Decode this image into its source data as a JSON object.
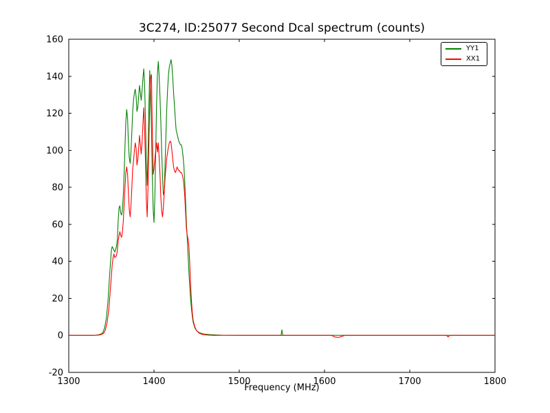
{
  "chart_data": {
    "type": "line",
    "title": "3C274, ID:25077 Second Dcal spectrum (counts)",
    "xlabel": "Frequency (MHz)",
    "ylabel": "",
    "xlim": [
      1300,
      1800
    ],
    "ylim": [
      -20,
      160
    ],
    "x_ticks": [
      1300,
      1400,
      1500,
      1600,
      1700,
      1800
    ],
    "y_ticks": [
      -20,
      0,
      20,
      40,
      60,
      80,
      100,
      120,
      140,
      160
    ],
    "grid": false,
    "legend_position": "upper right",
    "series": [
      {
        "name": "YY1",
        "color": "#008000",
        "points": [
          [
            1300,
            0
          ],
          [
            1315,
            0
          ],
          [
            1330,
            0
          ],
          [
            1335,
            0.3
          ],
          [
            1338,
            0.8
          ],
          [
            1340,
            1.5
          ],
          [
            1342,
            4
          ],
          [
            1344,
            9
          ],
          [
            1346,
            18
          ],
          [
            1348,
            33
          ],
          [
            1350,
            46
          ],
          [
            1351,
            48
          ],
          [
            1352,
            47
          ],
          [
            1354,
            45
          ],
          [
            1356,
            48
          ],
          [
            1357,
            52
          ],
          [
            1358,
            62
          ],
          [
            1359,
            69
          ],
          [
            1360,
            70
          ],
          [
            1361,
            66
          ],
          [
            1362,
            65
          ],
          [
            1363,
            68
          ],
          [
            1364,
            76
          ],
          [
            1365,
            88
          ],
          [
            1366,
            102
          ],
          [
            1367,
            116
          ],
          [
            1368,
            122
          ],
          [
            1369,
            117
          ],
          [
            1370,
            104
          ],
          [
            1371,
            96
          ],
          [
            1372,
            93
          ],
          [
            1373,
            99
          ],
          [
            1374,
            110
          ],
          [
            1375,
            121
          ],
          [
            1376,
            127
          ],
          [
            1377,
            131
          ],
          [
            1378,
            133
          ],
          [
            1379,
            129
          ],
          [
            1380,
            121
          ],
          [
            1381,
            123
          ],
          [
            1382,
            129
          ],
          [
            1383,
            135
          ],
          [
            1384,
            131
          ],
          [
            1385,
            127
          ],
          [
            1386,
            132
          ],
          [
            1387,
            139
          ],
          [
            1388,
            144
          ],
          [
            1389,
            135
          ],
          [
            1390,
            116
          ],
          [
            1391,
            94
          ],
          [
            1392,
            81
          ],
          [
            1393,
            98
          ],
          [
            1394,
            124
          ],
          [
            1395,
            143
          ],
          [
            1396,
            132
          ],
          [
            1397,
            112
          ],
          [
            1398,
            86
          ],
          [
            1399,
            68
          ],
          [
            1400,
            61
          ],
          [
            1401,
            74
          ],
          [
            1402,
            99
          ],
          [
            1403,
            124
          ],
          [
            1404,
            141
          ],
          [
            1405,
            148
          ],
          [
            1406,
            141
          ],
          [
            1407,
            129
          ],
          [
            1408,
            116
          ],
          [
            1409,
            99
          ],
          [
            1410,
            86
          ],
          [
            1411,
            76
          ],
          [
            1412,
            78
          ],
          [
            1413,
            92
          ],
          [
            1414,
            109
          ],
          [
            1415,
            123
          ],
          [
            1416,
            133
          ],
          [
            1417,
            141
          ],
          [
            1418,
            145
          ],
          [
            1419,
            147
          ],
          [
            1420,
            149
          ],
          [
            1421,
            146
          ],
          [
            1422,
            139
          ],
          [
            1423,
            131
          ],
          [
            1424,
            124
          ],
          [
            1425,
            117
          ],
          [
            1426,
            111
          ],
          [
            1427,
            109
          ],
          [
            1428,
            107
          ],
          [
            1429,
            105
          ],
          [
            1430,
            104
          ],
          [
            1431,
            103
          ],
          [
            1432,
            103
          ],
          [
            1433,
            101
          ],
          [
            1434,
            97
          ],
          [
            1435,
            92
          ],
          [
            1436,
            84
          ],
          [
            1437,
            73
          ],
          [
            1438,
            61
          ],
          [
            1439,
            52
          ],
          [
            1440,
            43
          ],
          [
            1441,
            34
          ],
          [
            1442,
            26
          ],
          [
            1443,
            19
          ],
          [
            1444,
            14
          ],
          [
            1445,
            10
          ],
          [
            1446,
            7
          ],
          [
            1448,
            4
          ],
          [
            1450,
            2.5
          ],
          [
            1453,
            1.5
          ],
          [
            1456,
            1
          ],
          [
            1460,
            0.6
          ],
          [
            1465,
            0.4
          ],
          [
            1470,
            0.3
          ],
          [
            1480,
            0.1
          ],
          [
            1500,
            0
          ],
          [
            1549,
            0
          ],
          [
            1550,
            3
          ],
          [
            1551,
            0
          ],
          [
            1600,
            0
          ],
          [
            1650,
            0
          ],
          [
            1700,
            0
          ],
          [
            1750,
            0
          ],
          [
            1800,
            0
          ]
        ]
      },
      {
        "name": "XX1",
        "color": "#ff0000",
        "points": [
          [
            1300,
            0
          ],
          [
            1315,
            0
          ],
          [
            1330,
            0
          ],
          [
            1336,
            0.2
          ],
          [
            1339,
            0.6
          ],
          [
            1341,
            1.2
          ],
          [
            1343,
            3
          ],
          [
            1345,
            7
          ],
          [
            1347,
            14
          ],
          [
            1349,
            26
          ],
          [
            1350,
            32
          ],
          [
            1351,
            38
          ],
          [
            1352,
            42
          ],
          [
            1353,
            44
          ],
          [
            1354,
            42
          ],
          [
            1356,
            43
          ],
          [
            1357,
            46
          ],
          [
            1358,
            51
          ],
          [
            1359,
            54
          ],
          [
            1360,
            56
          ],
          [
            1361,
            54
          ],
          [
            1362,
            53
          ],
          [
            1363,
            56
          ],
          [
            1364,
            62
          ],
          [
            1365,
            71
          ],
          [
            1366,
            80
          ],
          [
            1367,
            88
          ],
          [
            1368,
            91
          ],
          [
            1369,
            87
          ],
          [
            1370,
            77
          ],
          [
            1371,
            68
          ],
          [
            1372,
            64
          ],
          [
            1373,
            70
          ],
          [
            1374,
            80
          ],
          [
            1375,
            90
          ],
          [
            1376,
            94
          ],
          [
            1377,
            100
          ],
          [
            1378,
            104
          ],
          [
            1379,
            101
          ],
          [
            1380,
            92
          ],
          [
            1381,
            95
          ],
          [
            1382,
            101
          ],
          [
            1383,
            108
          ],
          [
            1384,
            103
          ],
          [
            1385,
            98
          ],
          [
            1386,
            104
          ],
          [
            1387,
            114
          ],
          [
            1388,
            123
          ],
          [
            1389,
            111
          ],
          [
            1390,
            94
          ],
          [
            1391,
            74
          ],
          [
            1392,
            64
          ],
          [
            1393,
            80
          ],
          [
            1394,
            104
          ],
          [
            1395,
            124
          ],
          [
            1396,
            139
          ],
          [
            1397,
            141
          ],
          [
            1398,
            112
          ],
          [
            1399,
            87
          ],
          [
            1400,
            90
          ],
          [
            1401,
            95
          ],
          [
            1402,
            100
          ],
          [
            1403,
            104
          ],
          [
            1404,
            99
          ],
          [
            1405,
            104
          ],
          [
            1406,
            97
          ],
          [
            1407,
            87
          ],
          [
            1408,
            75
          ],
          [
            1409,
            67
          ],
          [
            1410,
            64
          ],
          [
            1411,
            69
          ],
          [
            1412,
            77
          ],
          [
            1413,
            85
          ],
          [
            1414,
            91
          ],
          [
            1415,
            96
          ],
          [
            1416,
            99
          ],
          [
            1417,
            102
          ],
          [
            1418,
            104
          ],
          [
            1419,
            105
          ],
          [
            1420,
            104
          ],
          [
            1421,
            100
          ],
          [
            1422,
            95
          ],
          [
            1423,
            91
          ],
          [
            1424,
            89
          ],
          [
            1425,
            88
          ],
          [
            1426,
            89
          ],
          [
            1427,
            91
          ],
          [
            1428,
            90
          ],
          [
            1429,
            89
          ],
          [
            1430,
            89
          ],
          [
            1431,
            88
          ],
          [
            1432,
            88
          ],
          [
            1433,
            87
          ],
          [
            1434,
            85
          ],
          [
            1435,
            82
          ],
          [
            1436,
            76
          ],
          [
            1437,
            67
          ],
          [
            1438,
            58
          ],
          [
            1439,
            54
          ],
          [
            1440,
            52
          ],
          [
            1441,
            48
          ],
          [
            1442,
            38
          ],
          [
            1443,
            27
          ],
          [
            1444,
            18
          ],
          [
            1445,
            12
          ],
          [
            1446,
            8
          ],
          [
            1448,
            4.5
          ],
          [
            1450,
            2.5
          ],
          [
            1453,
            1.2
          ],
          [
            1456,
            0.6
          ],
          [
            1460,
            0.3
          ],
          [
            1465,
            0.1
          ],
          [
            1470,
            0
          ],
          [
            1500,
            0
          ],
          [
            1608,
            0
          ],
          [
            1612,
            -0.8
          ],
          [
            1616,
            -1.2
          ],
          [
            1620,
            -0.6
          ],
          [
            1624,
            0
          ],
          [
            1650,
            0
          ],
          [
            1700,
            0
          ],
          [
            1743,
            0
          ],
          [
            1745,
            -0.8
          ],
          [
            1747,
            0
          ],
          [
            1800,
            0
          ]
        ]
      }
    ]
  }
}
